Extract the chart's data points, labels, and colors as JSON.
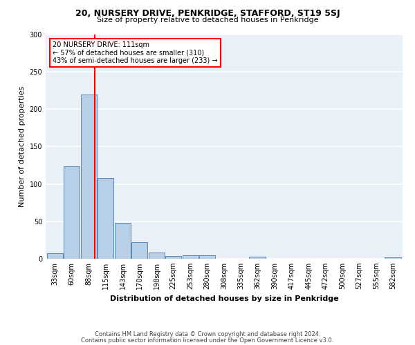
{
  "title": "20, NURSERY DRIVE, PENKRIDGE, STAFFORD, ST19 5SJ",
  "subtitle": "Size of property relative to detached houses in Penkridge",
  "xlabel": "Distribution of detached houses by size in Penkridge",
  "ylabel": "Number of detached properties",
  "bar_color": "#b8cfe8",
  "bar_edge_color": "#4a7aad",
  "background_color": "#eaf0f8",
  "grid_color": "white",
  "annotation_text": "20 NURSERY DRIVE: 111sqm\n← 57% of detached houses are smaller (310)\n43% of semi-detached houses are larger (233) →",
  "property_line_x": 111,
  "categories": [
    "33sqm",
    "60sqm",
    "88sqm",
    "115sqm",
    "143sqm",
    "170sqm",
    "198sqm",
    "225sqm",
    "253sqm",
    "280sqm",
    "308sqm",
    "335sqm",
    "362sqm",
    "390sqm",
    "417sqm",
    "445sqm",
    "472sqm",
    "500sqm",
    "527sqm",
    "555sqm",
    "582sqm"
  ],
  "bin_edges": [
    33,
    60,
    88,
    115,
    143,
    170,
    198,
    225,
    253,
    280,
    308,
    335,
    362,
    390,
    417,
    445,
    472,
    500,
    527,
    555,
    582
  ],
  "bin_width": 27,
  "values": [
    7,
    124,
    220,
    108,
    48,
    22,
    8,
    4,
    5,
    5,
    0,
    0,
    3,
    0,
    0,
    0,
    0,
    0,
    0,
    0,
    2
  ],
  "ylim": [
    0,
    300
  ],
  "yticks": [
    0,
    50,
    100,
    150,
    200,
    250,
    300
  ],
  "footer_line1": "Contains HM Land Registry data © Crown copyright and database right 2024.",
  "footer_line2": "Contains public sector information licensed under the Open Government Licence v3.0.",
  "annotation_box_color": "white",
  "annotation_box_edgecolor": "red",
  "property_line_color": "red",
  "title_fontsize": 9,
  "subtitle_fontsize": 8,
  "ylabel_fontsize": 8,
  "xlabel_fontsize": 8,
  "tick_fontsize": 7,
  "footer_fontsize": 6,
  "annot_fontsize": 7
}
